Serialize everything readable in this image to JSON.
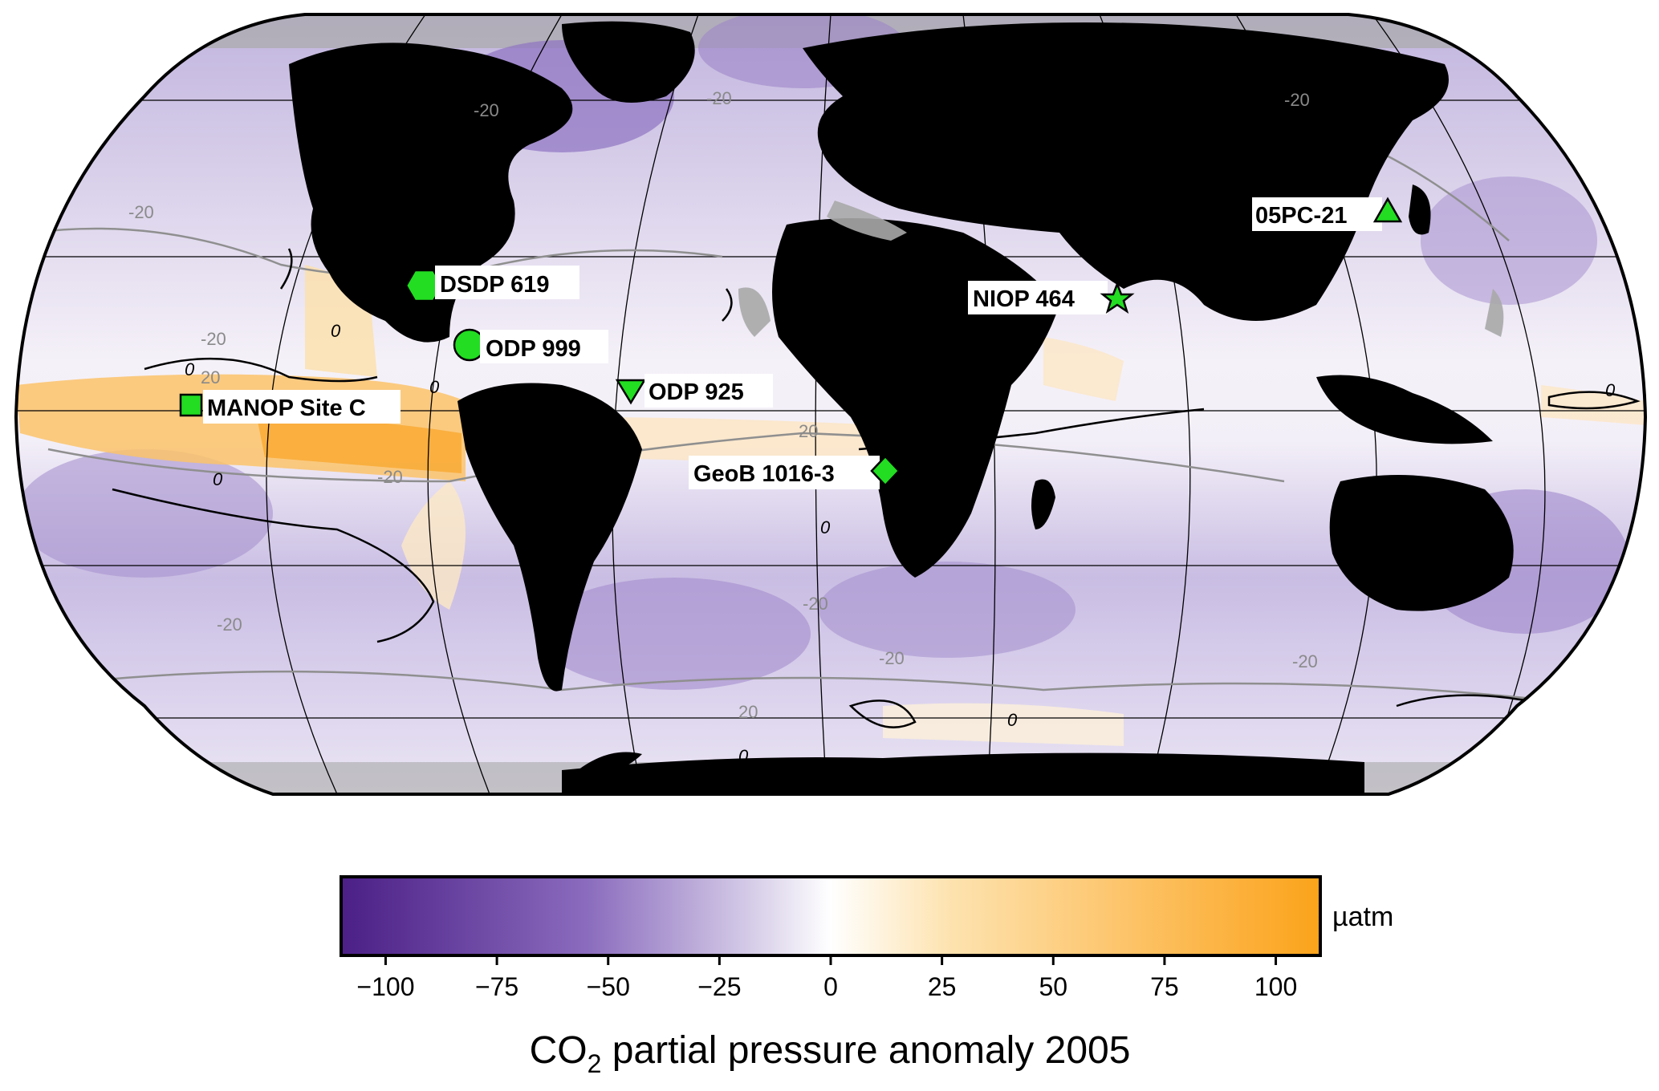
{
  "map": {
    "projection": "Robinson",
    "land_color": "#000000",
    "no_data_color": "#a9a9a9",
    "sites": [
      {
        "name": "DSDP 619",
        "marker": "hexagon-icon",
        "color": "#22dd22"
      },
      {
        "name": "ODP 999",
        "marker": "circle-icon",
        "color": "#22dd22"
      },
      {
        "name": "ODP 925",
        "marker": "inverted-triangle-icon",
        "color": "#22dd22"
      },
      {
        "name": "MANOP Site C",
        "marker": "square-icon",
        "color": "#22dd22"
      },
      {
        "name": "GeoB 1016-3",
        "marker": "diamond-icon",
        "color": "#22dd22"
      },
      {
        "name": "NIOP 464",
        "marker": "star-icon",
        "color": "#22dd22"
      },
      {
        "name": "05PC-21",
        "marker": "triangle-icon",
        "color": "#22dd22"
      }
    ],
    "contour_labels": {
      "minus20": "-20",
      "zero": "0",
      "plus20": "20"
    }
  },
  "colorbar": {
    "ticks": [
      "−100",
      "−75",
      "−50",
      "−25",
      "0",
      "25",
      "50",
      "75",
      "100"
    ],
    "range": [
      -110,
      110
    ],
    "unit": "µatm",
    "title_prefix": "CO",
    "title_subscript": "2",
    "title_suffix": " partial pressure anomaly 2005",
    "colors": [
      "#4b1f86",
      "#8a6bbd",
      "#d6cde8",
      "#ffffff",
      "#fde3b0",
      "#fba31a"
    ]
  }
}
